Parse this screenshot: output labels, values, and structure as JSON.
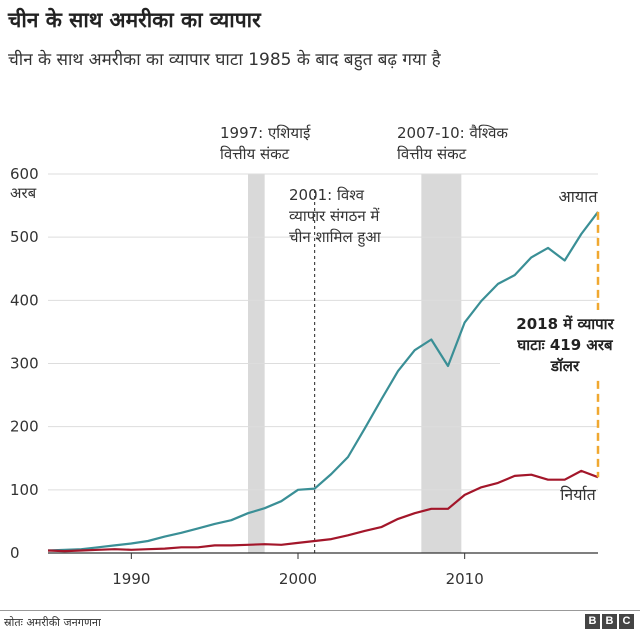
{
  "header": {
    "title": "चीन के साथ अमरीका का व्यापार",
    "subtitle": "चीन के साथ अमरीका का व्यापार घाटा 1985 के बाद बहुत बढ़ गया है"
  },
  "footer": {
    "source": "स्रोतः अमरीकी जनगणना",
    "logo_letters": [
      "B",
      "B",
      "C"
    ]
  },
  "colors": {
    "imports": "#3a8f96",
    "exports": "#a3162a",
    "deficit": "#f0a830",
    "shade": "#d9d9d9"
  },
  "chart_data": {
    "type": "line",
    "title": "चीन के साथ अमरीका का व्यापार",
    "xlabel": "",
    "ylabel": "अरब",
    "ylim": [
      0,
      600
    ],
    "xlim": [
      1985,
      2018
    ],
    "yticks": [
      "0",
      "100",
      "200",
      "300",
      "400",
      "500",
      "600"
    ],
    "y_unit_label": "अरब",
    "xticks": [
      "1990",
      "2000",
      "2010"
    ],
    "grid": true,
    "x": [
      1985,
      1986,
      1987,
      1988,
      1989,
      1990,
      1991,
      1992,
      1993,
      1994,
      1995,
      1996,
      1997,
      1998,
      1999,
      2000,
      2001,
      2002,
      2003,
      2004,
      2005,
      2006,
      2007,
      2008,
      2009,
      2010,
      2011,
      2012,
      2013,
      2014,
      2015,
      2016,
      2017,
      2018
    ],
    "series": [
      {
        "name": "आयात",
        "values": [
          4,
          5,
          6,
          9,
          12,
          15,
          19,
          26,
          32,
          39,
          46,
          52,
          63,
          71,
          82,
          100,
          102,
          125,
          152,
          197,
          243,
          288,
          321,
          338,
          296,
          365,
          399,
          426,
          440,
          468,
          483,
          463,
          505,
          540
        ]
      },
      {
        "name": "निर्यात",
        "values": [
          4,
          3,
          4,
          5,
          6,
          5,
          6,
          7,
          9,
          9,
          12,
          12,
          13,
          14,
          13,
          16,
          19,
          22,
          28,
          35,
          41,
          54,
          63,
          70,
          70,
          92,
          104,
          111,
          122,
          124,
          116,
          116,
          130,
          120
        ]
      }
    ],
    "shaded_periods": [
      {
        "start": 1997,
        "end": 1998,
        "label": "1997: एशियाई वित्तीय संकट"
      },
      {
        "start": 2007.4,
        "end": 2009.8,
        "label": "2007-10: वैश्विक वित्तीय संकट"
      }
    ],
    "event_line": {
      "x": 2001,
      "label": "2001: विश्व व्यापार संगठन में चीन शामिल हुआ"
    },
    "deficit_annotation": {
      "x": 2018,
      "from": 120,
      "to": 540,
      "label": "2018 में व्यापार घाटाः 419 अरब डॉलर"
    }
  }
}
